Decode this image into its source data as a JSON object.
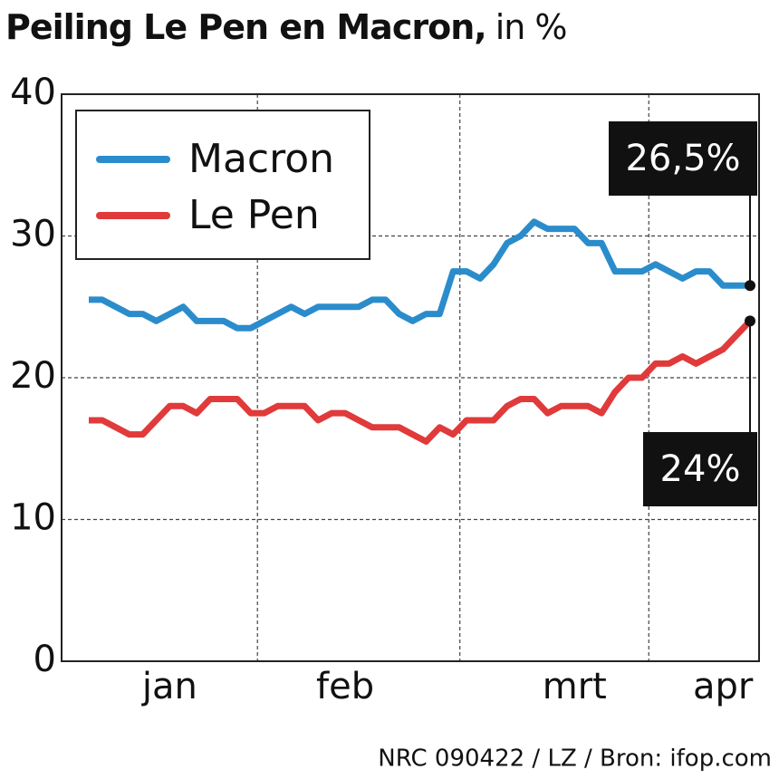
{
  "chart_data": {
    "type": "line",
    "title": "Peiling Le Pen en Macron,",
    "subtitle": "in %",
    "source": "NRC 090422 / LZ / Bron: ifop.com",
    "categories": [
      null,
      null,
      null,
      null,
      null,
      null,
      "jan",
      null,
      null,
      null,
      null,
      null,
      null,
      null,
      null,
      null,
      null,
      null,
      null,
      "feb",
      null,
      null,
      null,
      null,
      null,
      null,
      null,
      null,
      null,
      null,
      null,
      null,
      null,
      null,
      null,
      null,
      "mrt",
      null,
      null,
      null,
      null,
      null,
      null,
      null,
      null,
      null,
      null,
      "apr",
      null,
      null
    ],
    "series": [
      {
        "name": "Macron",
        "color": "#2b8ccc",
        "values": [
          25.5,
          25.5,
          25,
          24.5,
          24.5,
          24,
          24.5,
          25,
          24,
          24,
          24,
          23.5,
          23.5,
          24,
          24.5,
          25,
          24.5,
          25,
          25,
          25,
          25,
          25.5,
          25.5,
          24.5,
          24,
          24.5,
          24.5,
          27.5,
          27.5,
          27,
          28,
          29.5,
          30,
          31,
          30.5,
          30.5,
          30.5,
          29.5,
          29.5,
          27.5,
          27.5,
          27.5,
          28,
          27.5,
          27,
          27.5,
          27.5,
          26.5,
          26.5,
          26.5
        ],
        "value_labels": [
          null,
          null,
          null,
          null,
          null,
          null,
          null,
          null,
          null,
          null,
          null,
          null,
          null,
          null,
          null,
          null,
          null,
          null,
          null,
          null,
          null,
          null,
          null,
          null,
          null,
          null,
          null,
          null,
          null,
          null,
          null,
          null,
          null,
          null,
          null,
          null,
          null,
          null,
          null,
          null,
          null,
          null,
          null,
          null,
          null,
          null,
          null,
          null,
          null,
          "26,5%"
        ]
      },
      {
        "name": "Le Pen",
        "color": "#e03a3a",
        "values": [
          17,
          17,
          16.5,
          16,
          16,
          17,
          18,
          18,
          17.5,
          18.5,
          18.5,
          18.5,
          17.5,
          17.5,
          18,
          18,
          18,
          17,
          17.5,
          17.5,
          17,
          16.5,
          16.5,
          16.5,
          16,
          15.5,
          16.5,
          16,
          17,
          17,
          17,
          18,
          18.5,
          18.5,
          17.5,
          18,
          18,
          18,
          17.5,
          19,
          20,
          20,
          21,
          21,
          21.5,
          21,
          21.5,
          22,
          23,
          24
        ],
        "value_labels": [
          null,
          null,
          null,
          null,
          null,
          null,
          null,
          null,
          null,
          null,
          null,
          null,
          null,
          null,
          null,
          null,
          null,
          null,
          null,
          null,
          null,
          null,
          null,
          null,
          null,
          null,
          null,
          null,
          null,
          null,
          null,
          null,
          null,
          null,
          null,
          null,
          null,
          null,
          null,
          null,
          null,
          null,
          null,
          null,
          null,
          null,
          null,
          null,
          null,
          "24%"
        ]
      }
    ],
    "ylim": [
      0,
      40
    ],
    "yticks": [
      0,
      10,
      20,
      30,
      40
    ],
    "grid": true,
    "legend": "top-left"
  }
}
